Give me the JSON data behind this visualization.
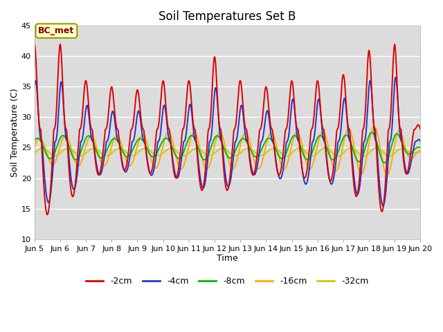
{
  "title": "Soil Temperatures Set B",
  "xlabel": "Time",
  "ylabel": "Soil Temperature (C)",
  "ylim": [
    10,
    45
  ],
  "annotation": "BC_met",
  "x_tick_labels": [
    "Jun 5",
    "Jun 6",
    "Jun 7",
    "Jun 8",
    "Jun 9",
    "Jun 10",
    "Jun 11",
    "Jun 12",
    "Jun 13",
    "Jun 14",
    "Jun 15",
    "Jun 16",
    "Jun 17",
    "Jun 18",
    "Jun 19",
    "Jun 20"
  ],
  "series": {
    "-2cm": {
      "color": "#dd0000",
      "lw": 1.4
    },
    "-4cm": {
      "color": "#2233cc",
      "lw": 1.4
    },
    "-8cm": {
      "color": "#00bb00",
      "lw": 1.4
    },
    "-16cm": {
      "color": "#ffaa00",
      "lw": 1.4
    },
    "-32cm": {
      "color": "#cccc00",
      "lw": 1.4
    }
  },
  "legend_order": [
    "-2cm",
    "-4cm",
    "-8cm",
    "-16cm",
    "-32cm"
  ],
  "grid_color": "#ffffff",
  "bg_color": "#e0e0e0",
  "plot_bg": "#dcdcdc",
  "fig_bg": "#ffffff",
  "n_days": 15,
  "pts_per_day": 48,
  "mean_2cm": 28.0,
  "mean_4cm": 26.0,
  "mean_8cm": 25.0,
  "mean_16cm": 24.5,
  "mean_32cm": 24.3,
  "base_amp_2cm": 14.0,
  "base_amp_4cm": 8.5,
  "base_amp_8cm": 2.0,
  "base_amp_16cm": 2.8,
  "base_amp_32cm": 0.6,
  "phase_2cm": 1.5707963,
  "phase_4cm": 1.3,
  "phase_8cm": 0.9,
  "phase_16cm": 0.3,
  "phase_32cm": -0.3,
  "sharpness": 3.0
}
